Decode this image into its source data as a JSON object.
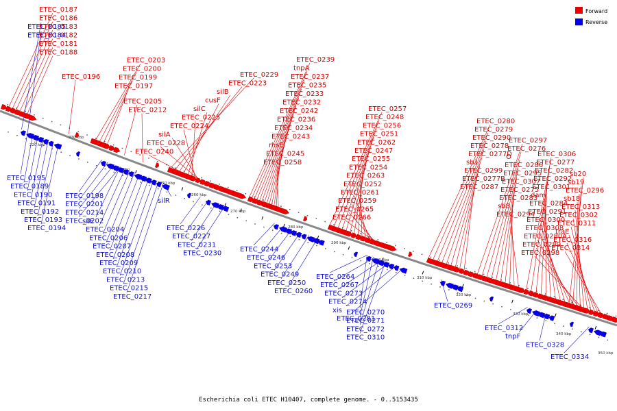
{
  "title": "Escherichia coli ETEC H10407, complete genome. - 0..5153435",
  "legend": [
    {
      "label": "Forward",
      "color": "#ee0000"
    },
    {
      "label": "Reverse",
      "color": "#0000ee"
    }
  ],
  "colors": {
    "forward": "#ee0000",
    "reverse": "#0000ee",
    "backbone": "#888888"
  },
  "kbp_ticks": [
    "220 kbp",
    "230 kbp",
    "240 kbp",
    "250 kbp",
    "260 kbp",
    "270 kbp",
    "280 kbp",
    "290 kbp",
    "300 kbp",
    "310 kbp",
    "320 kbp",
    "330 kbp",
    "340 kbp",
    "350 kbp"
  ],
  "forward_labels": [
    "ETEC_0187",
    "ETEC_0186",
    "ETEC_0183",
    "ETEC_0182",
    "ETEC_0181",
    "ETEC_0188",
    "ETEC_0196",
    "ETEC_0203",
    "ETEC_0200",
    "ETEC_0199",
    "ETEC_0197",
    "ETEC_0205",
    "ETEC_0212",
    "ETEC_0229",
    "ETEC_0223",
    "silB",
    "cusF",
    "silC",
    "ETEC_0225",
    "ETEC_0224",
    "silA",
    "ETEC_0228",
    "ETEC_0240",
    "ETEC_0239",
    "tnpA",
    "ETEC_0237",
    "ETEC_0235",
    "ETEC_0233",
    "ETEC_0232",
    "ETEC_0242",
    "ETEC_0236",
    "ETEC_0234",
    "ETEC_0243",
    "rhsE",
    "ETEC_0245",
    "ETEC_0258",
    "ETEC_0257",
    "ETEC_0248",
    "ETEC_0256",
    "ETEC_0251",
    "ETEC_0262",
    "ETEC_0247",
    "ETEC_0255",
    "ETEC_0254",
    "ETEC_0263",
    "ETEC_0252",
    "ETEC_0261",
    "ETEC_0259",
    "ETEC_0265",
    "ETEC_0266",
    "ETEC_0280",
    "ETEC_0279",
    "ETEC_0290",
    "ETEC_0278",
    "ETEC_0277D",
    "sb1",
    "ETEC_0299",
    "ETEC_0277B",
    "ETEC_0287",
    "ETEC_0297",
    "ETEC_0276",
    "O",
    "ETEC_0286",
    "ETEC_0295",
    "ETEC_0307",
    "ETEC_0275",
    "ETEC_0283",
    "sb8",
    "ETEC_0294",
    "ETEC_0306",
    "ETEC_0277",
    "ETEC_0282",
    "ETEC_0292",
    "ETEC_0301",
    "dam",
    "ETEC_0284",
    "ETEC_0291",
    "ETEC_0300",
    "ETEC_0308",
    "ETEC_0280A",
    "ETEC_0289",
    "ETEC_0298",
    "sb20",
    "sb19",
    "ETEC_0296",
    "sb18",
    "ETEC_0313",
    "ETEC_0302",
    "ETEC_0311",
    "traE",
    "ETEC_0316",
    "ETEC_0314"
  ],
  "reverse_labels": [
    "ETEC_0185",
    "ETEC_0184",
    "ETEC_0195",
    "ETEC_0189",
    "ETEC_0190",
    "ETEC_0191",
    "ETEC_0192",
    "ETEC_0193",
    "ETEC_0194",
    "ETEC_0198",
    "ETEC_0201",
    "ETEC_0214",
    "ETEC_0202",
    "silE",
    "ETEC_0204",
    "ETEC_0206",
    "ETEC_0207",
    "ETEC_0208",
    "ETEC_0209",
    "ETEC_0210",
    "ETEC_0213",
    "ETEC_0215",
    "ETEC_0217",
    "silR",
    "ETEC_0226",
    "ETEC_0227",
    "ETEC_0231",
    "ETEC_0230",
    "ETEC_0244",
    "ETEC_0246",
    "ETEC_0253",
    "ETEC_0249",
    "ETEC_0250",
    "ETEC_0260",
    "ETEC_0264",
    "ETEC_0267",
    "ETEC_0273",
    "ETEC_0274",
    "xis",
    "ETEC_0281",
    "ETEC_0269",
    "ETEC_0270",
    "ETEC_0271",
    "ETEC_0272",
    "ETEC_0310",
    "ETEC_0312",
    "tnpF",
    "ETEC_0328",
    "ETEC_0334"
  ]
}
